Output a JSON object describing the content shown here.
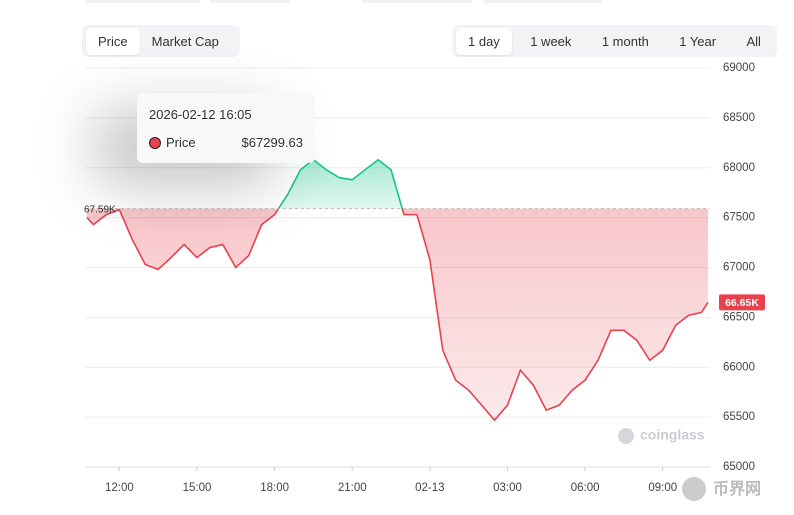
{
  "tabs": {
    "items": [
      "Price",
      "Market Cap"
    ],
    "active": 0
  },
  "ranges": {
    "items": [
      "1 day",
      "1 week",
      "1 month",
      "1 Year",
      "All"
    ],
    "active": 0
  },
  "watermark": "coinglass",
  "site_mark": "币界网",
  "tooltip": {
    "time": "2026-02-12 16:05",
    "series": "Price",
    "value_label": "$67299.63"
  },
  "chart_data": {
    "type": "line",
    "x": [
      10.75,
      11,
      11.5,
      12,
      12.5,
      13,
      13.5,
      14,
      14.5,
      15,
      15.5,
      16,
      16.5,
      17,
      17.5,
      18,
      18.5,
      19,
      19.5,
      20,
      20.5,
      21,
      21.5,
      22,
      22.5,
      23,
      23.5,
      24,
      24.5,
      25,
      25.5,
      26,
      26.5,
      27,
      27.5,
      28,
      28.5,
      29,
      29.5,
      30,
      30.5,
      31,
      31.5,
      32,
      32.5,
      33,
      33.5,
      34,
      34.5,
      34.75
    ],
    "series": [
      {
        "name": "Price",
        "color": "#e8414d",
        "up_color": "#16c784",
        "values": [
          67500,
          67430,
          67530,
          67580,
          67280,
          67030,
          66980,
          67100,
          67230,
          67100,
          67200,
          67230,
          67000,
          67120,
          67430,
          67530,
          67730,
          67980,
          68080,
          67980,
          67900,
          67880,
          67980,
          68080,
          67980,
          67530,
          67530,
          67080,
          66170,
          65870,
          65770,
          65620,
          65470,
          65620,
          65970,
          65820,
          65570,
          65620,
          65770,
          65870,
          66070,
          66370,
          66370,
          66270,
          66070,
          66170,
          66420,
          66520,
          66550,
          66650
        ],
        "last_label": "66.65K"
      }
    ],
    "reference": {
      "value": 67590,
      "label": "67.59K"
    },
    "xlim": [
      10.75,
      34.75
    ],
    "xticks": [
      {
        "value": 12,
        "label": "12:00"
      },
      {
        "value": 15,
        "label": "15:00"
      },
      {
        "value": 18,
        "label": "18:00"
      },
      {
        "value": 21,
        "label": "21:00"
      },
      {
        "value": 24,
        "label": "02-13"
      },
      {
        "value": 27,
        "label": "03:00"
      },
      {
        "value": 30,
        "label": "06:00"
      },
      {
        "value": 33,
        "label": "09:00"
      }
    ],
    "ylim": [
      65000,
      69000
    ],
    "yticks": [
      65000,
      65500,
      66000,
      66500,
      67000,
      67500,
      68000,
      68500,
      69000
    ],
    "grid": true
  }
}
